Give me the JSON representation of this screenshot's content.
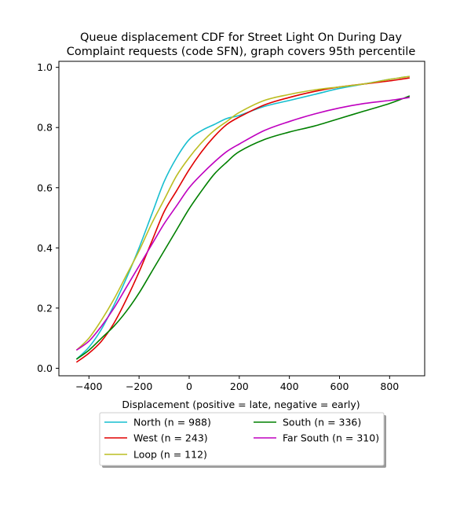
{
  "chart_data": {
    "type": "line",
    "title_line1": "Queue displacement CDF for Street Light On During Day",
    "title_line2": "Complaint  requests (code SFN), graph covers 95th percentile",
    "xlabel": "Displacement (positive = late, negative = early)",
    "ylabel": "",
    "xlim": [
      -520,
      940
    ],
    "ylim": [
      -0.025,
      1.02
    ],
    "xticks": [
      -400,
      -200,
      0,
      200,
      400,
      600,
      800
    ],
    "yticks": [
      0.0,
      0.2,
      0.4,
      0.6,
      0.8,
      1.0
    ],
    "xtick_labels": [
      "−400",
      "−200",
      "0",
      "200",
      "400",
      "600",
      "800"
    ],
    "ytick_labels": [
      "0.0",
      "0.2",
      "0.4",
      "0.6",
      "0.8",
      "1.0"
    ],
    "grid": false,
    "legend_position": "bottom-center",
    "series": [
      {
        "name": "North (n = 988)",
        "color": "#17becf",
        "x": [
          -450,
          -400,
          -350,
          -300,
          -250,
          -200,
          -150,
          -100,
          -50,
          0,
          50,
          100,
          150,
          200,
          300,
          400,
          500,
          600,
          700,
          800,
          880
        ],
        "y": [
          0.03,
          0.07,
          0.13,
          0.21,
          0.3,
          0.4,
          0.51,
          0.62,
          0.7,
          0.76,
          0.79,
          0.81,
          0.83,
          0.84,
          0.87,
          0.89,
          0.91,
          0.93,
          0.945,
          0.96,
          0.97
        ]
      },
      {
        "name": "West (n = 243)",
        "color": "#e00000",
        "x": [
          -450,
          -400,
          -350,
          -300,
          -250,
          -200,
          -150,
          -100,
          -50,
          0,
          50,
          100,
          150,
          200,
          300,
          400,
          500,
          600,
          700,
          800,
          880
        ],
        "y": [
          0.02,
          0.05,
          0.09,
          0.15,
          0.23,
          0.32,
          0.42,
          0.52,
          0.59,
          0.66,
          0.72,
          0.77,
          0.81,
          0.835,
          0.875,
          0.9,
          0.92,
          0.935,
          0.945,
          0.955,
          0.965
        ]
      },
      {
        "name": "Loop (n = 112)",
        "color": "#bcbd22",
        "x": [
          -450,
          -400,
          -350,
          -300,
          -250,
          -200,
          -150,
          -100,
          -50,
          0,
          50,
          100,
          150,
          200,
          300,
          400,
          500,
          600,
          700,
          800,
          880
        ],
        "y": [
          0.06,
          0.1,
          0.16,
          0.23,
          0.31,
          0.39,
          0.48,
          0.56,
          0.64,
          0.7,
          0.75,
          0.79,
          0.82,
          0.85,
          0.89,
          0.91,
          0.925,
          0.935,
          0.945,
          0.96,
          0.97
        ]
      },
      {
        "name": "South (n = 336)",
        "color": "#008000",
        "x": [
          -450,
          -400,
          -350,
          -300,
          -250,
          -200,
          -150,
          -100,
          -50,
          0,
          50,
          100,
          150,
          200,
          300,
          400,
          500,
          600,
          700,
          800,
          880
        ],
        "y": [
          0.03,
          0.06,
          0.1,
          0.14,
          0.19,
          0.25,
          0.32,
          0.39,
          0.46,
          0.53,
          0.59,
          0.645,
          0.685,
          0.72,
          0.76,
          0.785,
          0.805,
          0.83,
          0.855,
          0.88,
          0.905
        ]
      },
      {
        "name": "Far South (n = 310)",
        "color": "#bf00bf",
        "x": [
          -450,
          -400,
          -350,
          -300,
          -250,
          -200,
          -150,
          -100,
          -50,
          0,
          50,
          100,
          150,
          200,
          300,
          400,
          500,
          600,
          700,
          800,
          880
        ],
        "y": [
          0.06,
          0.09,
          0.14,
          0.2,
          0.27,
          0.34,
          0.41,
          0.48,
          0.54,
          0.6,
          0.645,
          0.685,
          0.72,
          0.745,
          0.79,
          0.82,
          0.845,
          0.865,
          0.88,
          0.89,
          0.9
        ]
      }
    ]
  }
}
